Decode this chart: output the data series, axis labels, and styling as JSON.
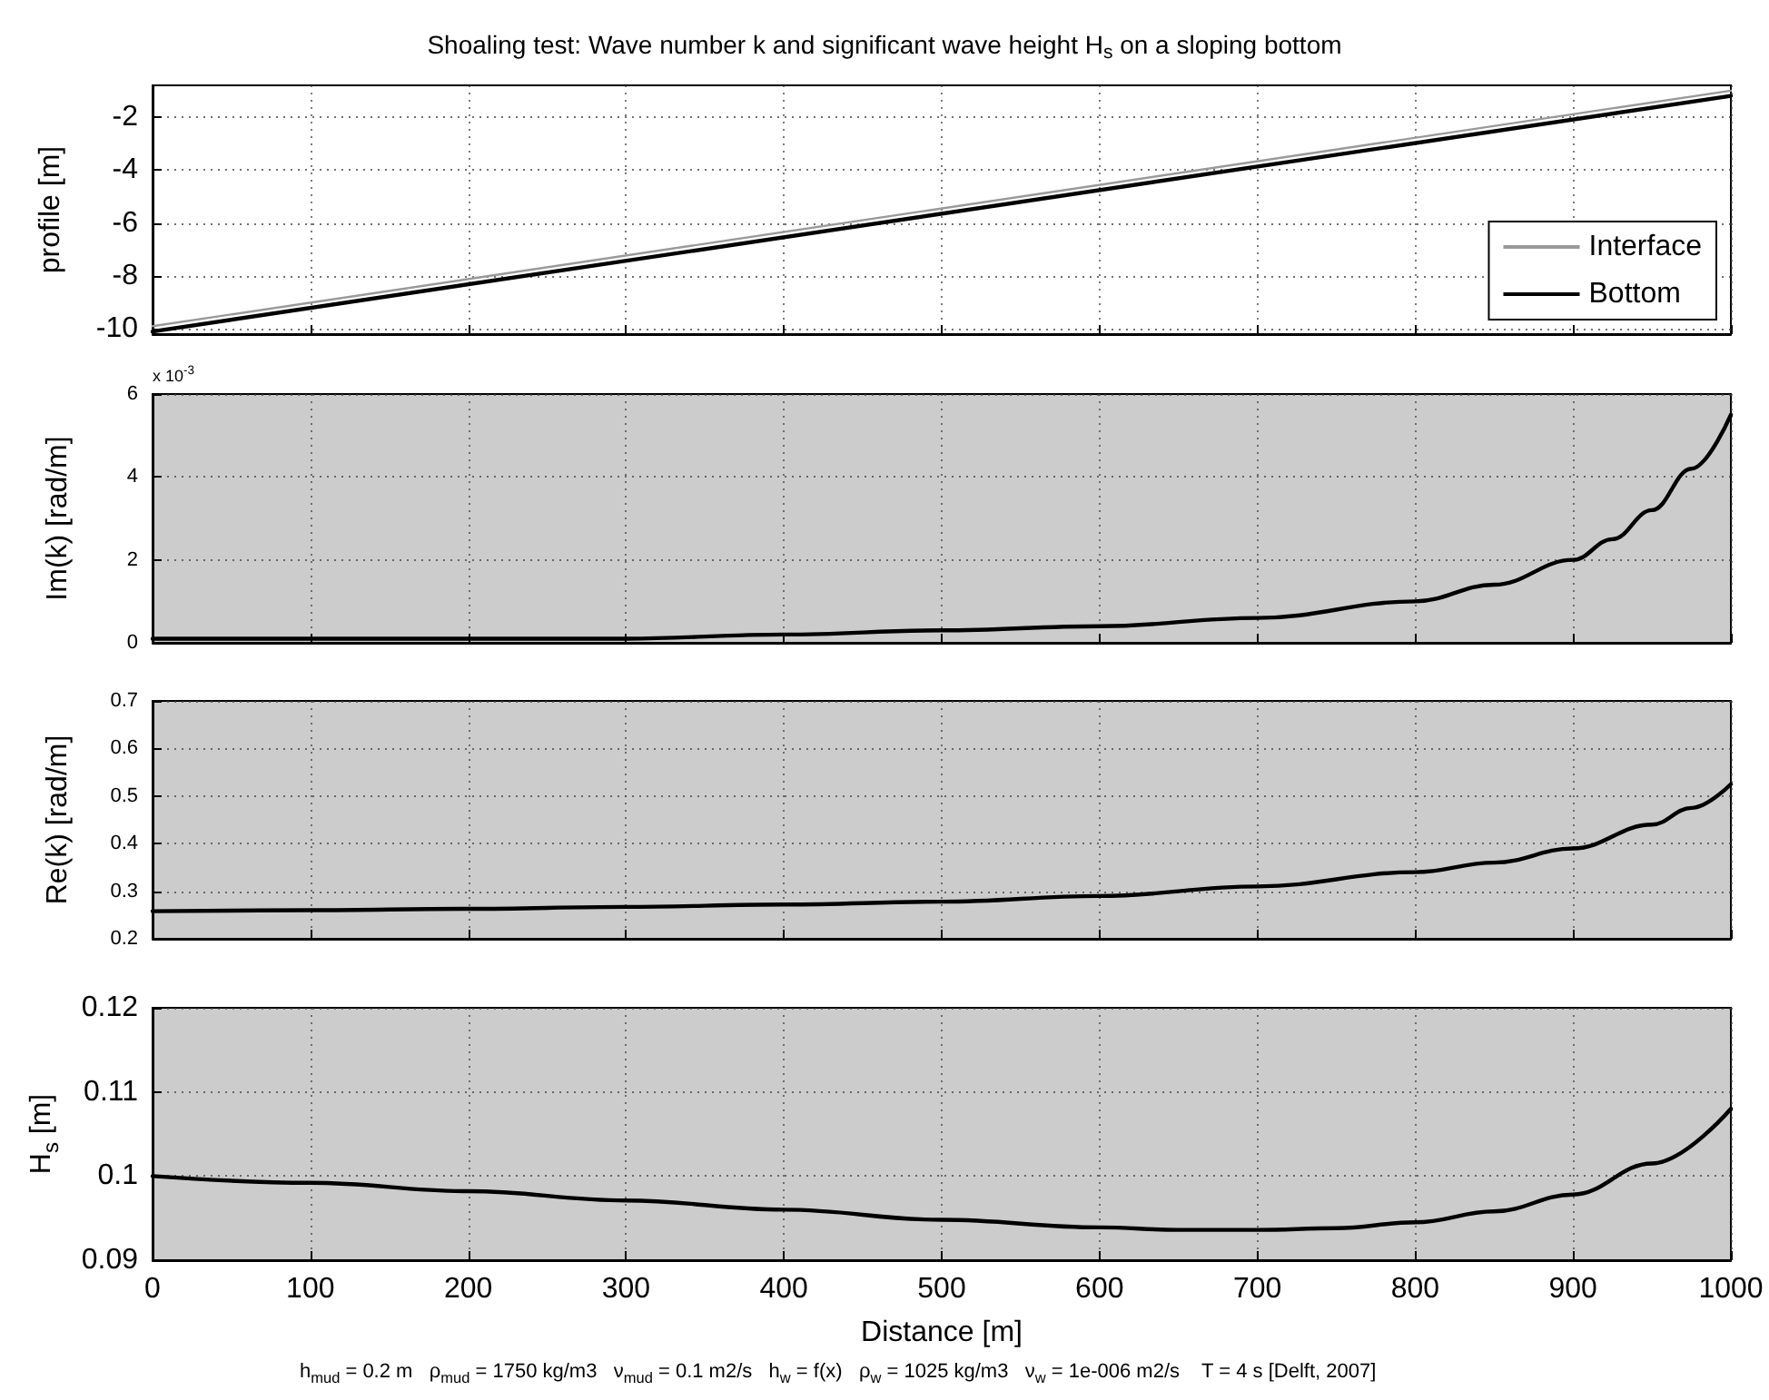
{
  "chart_data": [
    {
      "type": "line",
      "title": "Shoaling test: Wave number k and significant wave height H$_{s}$ on a sloping bottom",
      "ylabel": "profile [m]",
      "x": [
        0,
        1000
      ],
      "xlim": [
        0,
        1000
      ],
      "xticks": [
        0,
        100,
        200,
        300,
        400,
        500,
        600,
        700,
        800,
        900,
        1000
      ],
      "ylim": [
        -10.2,
        -0.8
      ],
      "yticks": [
        -10,
        -8,
        -6,
        -4,
        -2
      ],
      "tick_labels": "y",
      "grid": true,
      "legend": "bottom right",
      "series": [
        {
          "name": "Interface",
          "color": "#999999",
          "values": [
            -9.9,
            -1.0
          ]
        },
        {
          "name": "Bottom",
          "color": "#000000",
          "values": [
            -10.1,
            -1.2
          ]
        }
      ]
    },
    {
      "type": "line",
      "ylabel": "Im(k) [rad/m]",
      "annotations": [
        "x 10$^{-3}$"
      ],
      "x": [
        0,
        100,
        200,
        300,
        400,
        500,
        600,
        700,
        800,
        850,
        900,
        925,
        950,
        975,
        1000
      ],
      "xlim": [
        0,
        1000
      ],
      "xticks": [
        0,
        100,
        200,
        300,
        400,
        500,
        600,
        700,
        800,
        900,
        1000
      ],
      "ylim": [
        0,
        6
      ],
      "yticks": [
        0,
        2,
        4,
        6
      ],
      "tick_labels": "y",
      "grid": true,
      "series": [
        {
          "color": "#000000",
          "values": [
            0.1,
            0.1,
            0.1,
            0.1,
            0.2,
            0.3,
            0.4,
            0.6,
            1,
            1.4,
            2,
            2.5,
            3.2,
            4.2,
            5.5
          ]
        }
      ]
    },
    {
      "type": "line",
      "ylabel": "Re(k) [rad/m]",
      "x": [
        0,
        100,
        200,
        300,
        400,
        500,
        600,
        700,
        800,
        850,
        900,
        950,
        975,
        1000
      ],
      "xlim": [
        0,
        1000
      ],
      "xticks": [
        0,
        100,
        200,
        300,
        400,
        500,
        600,
        700,
        800,
        900,
        1000
      ],
      "ylim": [
        0.2,
        0.7
      ],
      "yticks": [
        0.2,
        0.3,
        0.4,
        0.5,
        0.6,
        0.7
      ],
      "tick_labels": "y",
      "grid": true,
      "series": [
        {
          "color": "#000000",
          "values": [
            0.258,
            0.26,
            0.263,
            0.267,
            0.272,
            0.278,
            0.29,
            0.31,
            0.34,
            0.36,
            0.39,
            0.44,
            0.475,
            0.525
          ]
        }
      ]
    },
    {
      "type": "line",
      "xlabel": "Distance [m]",
      "ylabel": "H$_{s}$ [m]",
      "annotations": [
        "h$_{mud}$ = 0.2 m   ρ$_{mud}$ = 1750 kg/m3   ν$_{mud}$ = 0.1 m2/s   h$_{w}$ = f(x)   ρ$_{w}$ = 1025 kg/m3   ν$_{w}$ = 1e-006 m2/s    T = 4 s [Delft, 2007]"
      ],
      "x": [
        0,
        100,
        200,
        300,
        400,
        500,
        600,
        650,
        700,
        750,
        800,
        850,
        900,
        950,
        1000
      ],
      "xlim": [
        0,
        1000
      ],
      "xticks": [
        0,
        100,
        200,
        300,
        400,
        500,
        600,
        700,
        800,
        900,
        1000
      ],
      "ylim": [
        0.09,
        0.12
      ],
      "yticks": [
        0.09,
        0.1,
        0.11,
        0.12
      ],
      "grid": true,
      "series": [
        {
          "color": "#000000",
          "values": [
            0.1,
            0.0992,
            0.0982,
            0.0971,
            0.096,
            0.0948,
            0.0939,
            0.0936,
            0.0936,
            0.0938,
            0.0945,
            0.0958,
            0.0978,
            0.1015,
            0.108
          ]
        }
      ]
    }
  ]
}
